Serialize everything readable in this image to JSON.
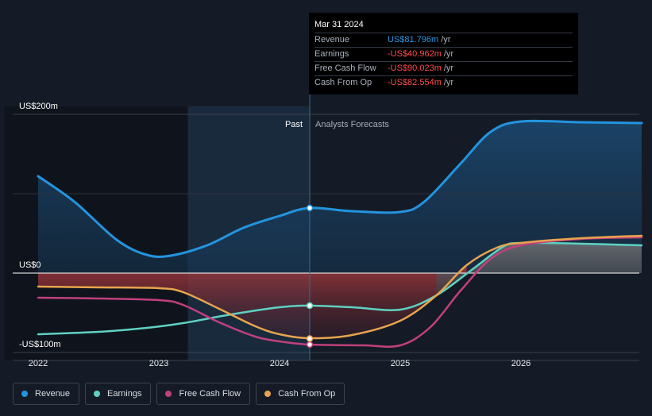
{
  "chart_data": {
    "type": "line",
    "x_ticks": [
      2022,
      2023,
      2024,
      2025,
      2026
    ],
    "x_tick_labels": [
      "2022",
      "2023",
      "2024",
      "2025",
      "2026"
    ],
    "xlim": [
      2021.8,
      2027.0
    ],
    "ylim": [
      -110,
      210
    ],
    "y_ticks": [
      {
        "value": 200,
        "label": "US$200m"
      },
      {
        "value": 0,
        "label": "US$0"
      },
      {
        "value": -100,
        "label": "-US$100m"
      }
    ],
    "divider_x": 2024.25,
    "past_shade_start": 2023.24,
    "region_labels": {
      "past": "Past",
      "forecast": "Analysts Forecasts"
    },
    "grid": true,
    "legend_position": "bottom-left",
    "series": [
      {
        "name": "Revenue",
        "key": "revenue",
        "color": "#2394df",
        "x": [
          2022.0,
          2022.3,
          2022.65,
          2022.9,
          2023.1,
          2023.4,
          2023.7,
          2024.0,
          2024.25,
          2024.6,
          2025.0,
          2025.2,
          2025.5,
          2025.75,
          2026.0,
          2026.5,
          2027.0
        ],
        "values": [
          122,
          90,
          42,
          23,
          22,
          35,
          57,
          72,
          82,
          78,
          77,
          90,
          138,
          178,
          191,
          190,
          189
        ]
      },
      {
        "name": "Earnings",
        "key": "earnings",
        "color": "#5fd1c2",
        "x": [
          2022.0,
          2022.5,
          2022.9,
          2023.2,
          2023.6,
          2024.0,
          2024.25,
          2024.6,
          2025.0,
          2025.3,
          2025.6,
          2025.85,
          2026.0,
          2026.5,
          2027.0
        ],
        "values": [
          -77,
          -74,
          -69,
          -63,
          -52,
          -43,
          -41,
          -43,
          -46,
          -28,
          5,
          33,
          38,
          37,
          35
        ]
      },
      {
        "name": "Free Cash Flow",
        "key": "fcf",
        "color": "#c0407d",
        "x": [
          2022.0,
          2022.5,
          2023.0,
          2023.2,
          2023.5,
          2023.8,
          2024.0,
          2024.25,
          2024.7,
          2025.0,
          2025.25,
          2025.5,
          2025.75,
          2026.0,
          2026.5,
          2027.0
        ],
        "values": [
          -31,
          -32,
          -34,
          -40,
          -62,
          -80,
          -86,
          -90,
          -91,
          -91,
          -68,
          -22,
          18,
          35,
          43,
          45
        ]
      },
      {
        "name": "Cash From Op",
        "key": "cfo",
        "color": "#e8a44e",
        "x": [
          2022.0,
          2022.5,
          2023.0,
          2023.2,
          2023.5,
          2023.8,
          2024.0,
          2024.25,
          2024.6,
          2025.0,
          2025.3,
          2025.55,
          2025.8,
          2026.0,
          2026.5,
          2027.0
        ],
        "values": [
          -17,
          -18,
          -19,
          -24,
          -45,
          -67,
          -77,
          -82,
          -78,
          -60,
          -28,
          10,
          32,
          38,
          44,
          47
        ]
      }
    ],
    "highlight_x": 2024.25,
    "highlight_values": {
      "revenue": 82,
      "earnings": -41,
      "fcf": -90,
      "cfo": -82.5
    }
  },
  "tooltip": {
    "date": "Mar 31 2024",
    "rows": [
      {
        "name": "Revenue",
        "value": "US$81.796m",
        "unit": "/yr",
        "color": "#2394df"
      },
      {
        "name": "Earnings",
        "value": "-US$40.962m",
        "unit": "/yr",
        "color": "#ff4a4a"
      },
      {
        "name": "Free Cash Flow",
        "value": "-US$90.023m",
        "unit": "/yr",
        "color": "#ff4a4a"
      },
      {
        "name": "Cash From Op",
        "value": "-US$82.554m",
        "unit": "/yr",
        "color": "#ff4a4a"
      }
    ]
  },
  "legend": [
    {
      "label": "Revenue",
      "color": "#2394df"
    },
    {
      "label": "Earnings",
      "color": "#5fd1c2"
    },
    {
      "label": "Free Cash Flow",
      "color": "#c0407d"
    },
    {
      "label": "Cash From Op",
      "color": "#e8a44e"
    }
  ]
}
